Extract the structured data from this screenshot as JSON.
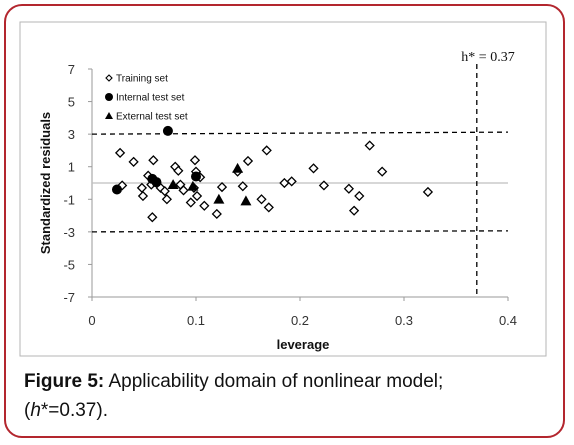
{
  "chart_data": {
    "type": "scatter",
    "title": "",
    "xlabel": "leverage",
    "ylabel": "Standardized  residuals",
    "xlim": [
      0,
      0.4
    ],
    "ylim": [
      -7,
      7
    ],
    "xticks": [
      0,
      0.1,
      0.2,
      0.3,
      0.4
    ],
    "xtick_labels": [
      "0",
      "0.1",
      "0.2",
      "0.3",
      "0.4"
    ],
    "yticks": [
      -7,
      -5,
      -3,
      -1,
      1,
      3,
      5,
      7
    ],
    "ytick_labels": [
      "-7",
      "-5",
      "-3",
      "-1",
      "1",
      "3",
      "5",
      "7"
    ],
    "grid": false,
    "legend_position": "top-left",
    "threshold_h": 0.37,
    "threshold_residual": 3,
    "annotation": "h* = 0.37",
    "series": [
      {
        "name": "Training set",
        "marker": "open-diamond",
        "points": [
          [
            0.027,
            1.85
          ],
          [
            0.029,
            -0.15
          ],
          [
            0.04,
            1.3
          ],
          [
            0.048,
            -0.3
          ],
          [
            0.049,
            -0.8
          ],
          [
            0.054,
            0.45
          ],
          [
            0.057,
            -0.1
          ],
          [
            0.058,
            -2.1
          ],
          [
            0.059,
            1.4
          ],
          [
            0.066,
            -0.3
          ],
          [
            0.07,
            -0.5
          ],
          [
            0.072,
            -1.0
          ],
          [
            0.08,
            1.0
          ],
          [
            0.083,
            0.75
          ],
          [
            0.085,
            -0.1
          ],
          [
            0.088,
            -0.45
          ],
          [
            0.095,
            -1.2
          ],
          [
            0.098,
            -0.3
          ],
          [
            0.099,
            1.4
          ],
          [
            0.1,
            0.7
          ],
          [
            0.101,
            -0.8
          ],
          [
            0.104,
            0.35
          ],
          [
            0.108,
            -1.4
          ],
          [
            0.12,
            -1.9
          ],
          [
            0.125,
            -0.25
          ],
          [
            0.14,
            0.7
          ],
          [
            0.145,
            -0.2
          ],
          [
            0.15,
            1.35
          ],
          [
            0.163,
            -1.0
          ],
          [
            0.168,
            2.0
          ],
          [
            0.17,
            -1.5
          ],
          [
            0.185,
            0.0
          ],
          [
            0.192,
            0.1
          ],
          [
            0.213,
            0.9
          ],
          [
            0.223,
            -0.15
          ],
          [
            0.247,
            -0.35
          ],
          [
            0.252,
            -1.7
          ],
          [
            0.257,
            -0.8
          ],
          [
            0.267,
            2.3
          ],
          [
            0.279,
            0.7
          ],
          [
            0.323,
            -0.55
          ]
        ]
      },
      {
        "name": "Internal test set",
        "marker": "filled-circle",
        "points": [
          [
            0.024,
            -0.4
          ],
          [
            0.058,
            0.25
          ],
          [
            0.062,
            0.05
          ],
          [
            0.073,
            3.2
          ],
          [
            0.1,
            0.4
          ]
        ]
      },
      {
        "name": "External test set",
        "marker": "filled-triangle",
        "points": [
          [
            0.078,
            -0.1
          ],
          [
            0.097,
            -0.2
          ],
          [
            0.122,
            -1.0
          ],
          [
            0.14,
            0.9
          ],
          [
            0.148,
            -1.1
          ]
        ]
      }
    ]
  },
  "caption": {
    "label": "Figure 5:",
    "text": " Applicability domain of nonlinear model;",
    "line2_italic": "h",
    "line2_rest": "*=0.37)."
  },
  "colors": {
    "frame": "#b3262e",
    "marker": "#000000",
    "zero_line": "#bfbfbf"
  }
}
